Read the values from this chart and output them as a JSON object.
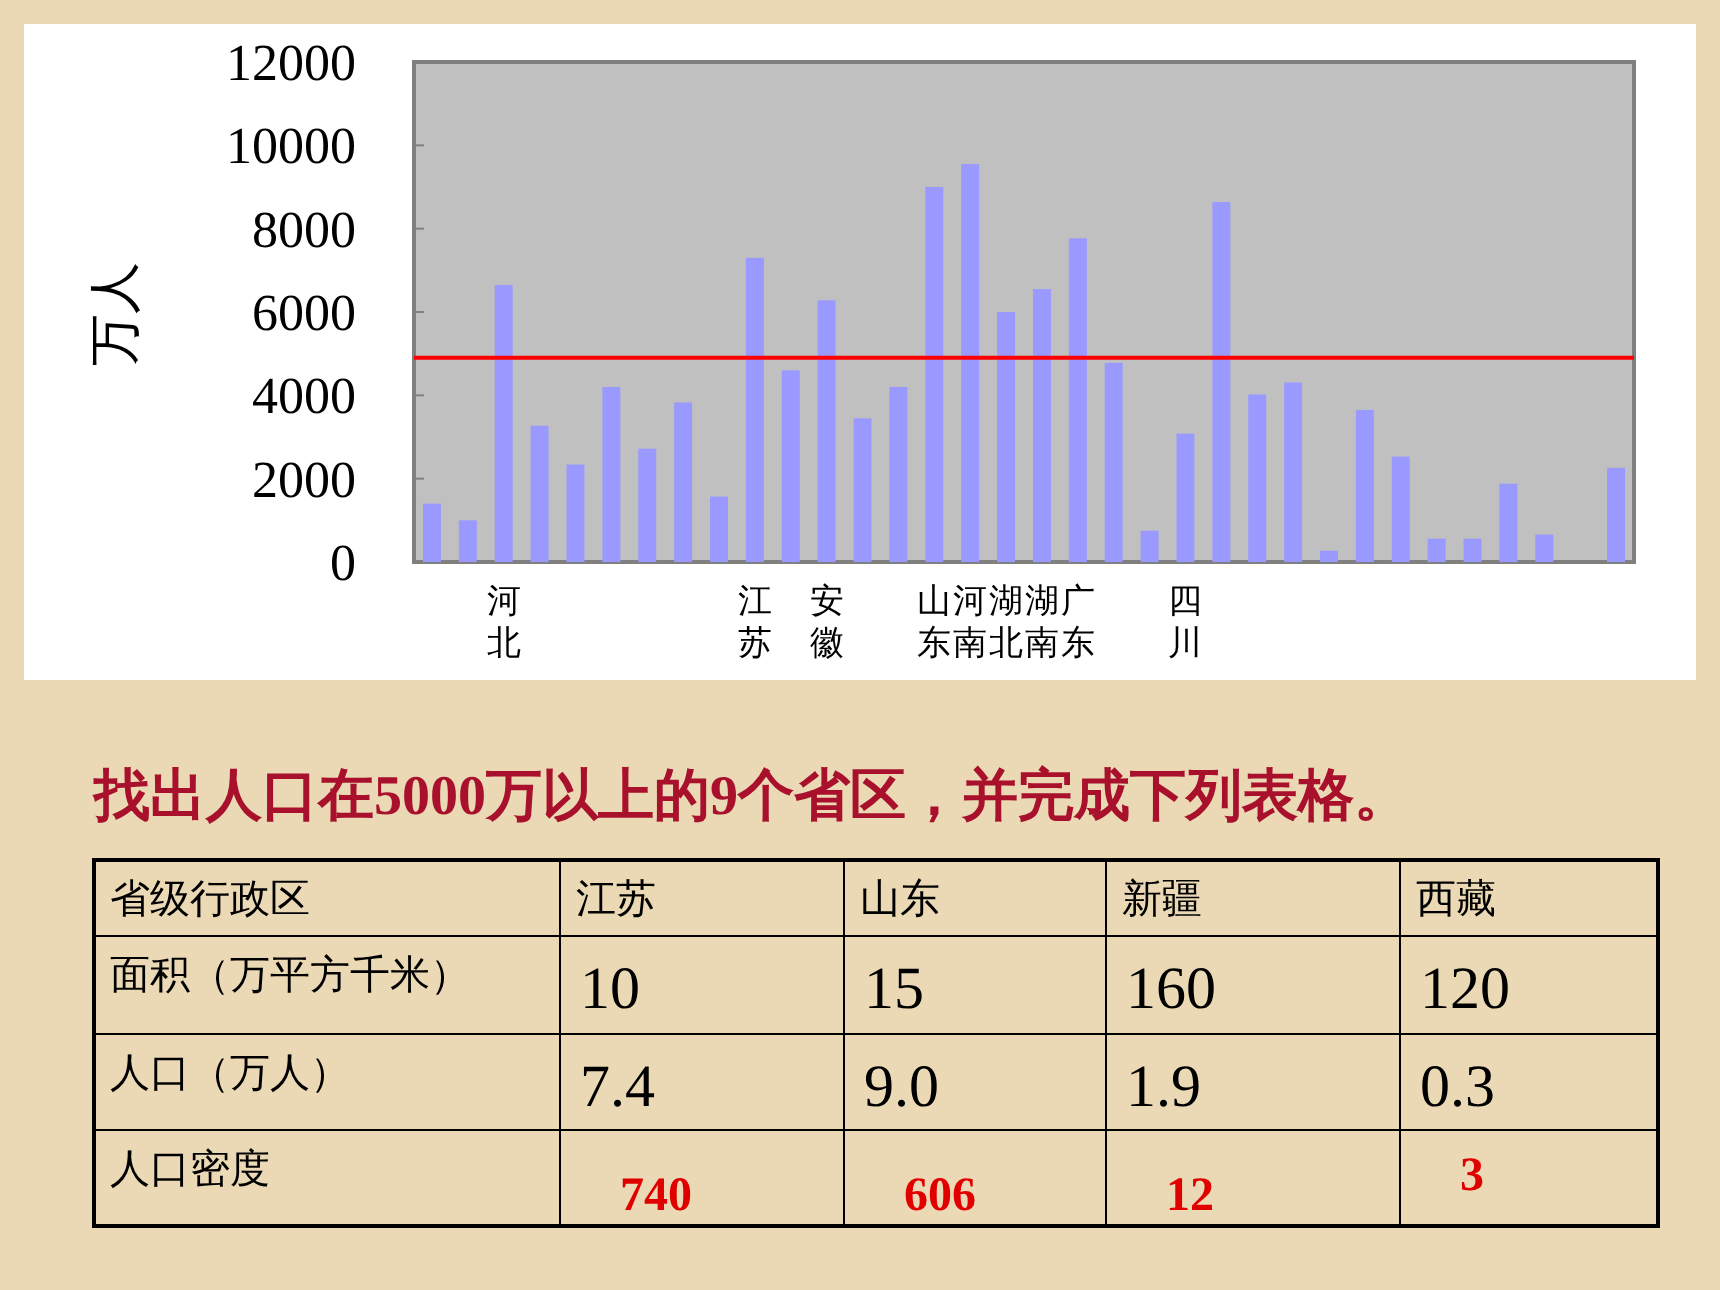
{
  "chart_data": [
    {
      "type": "bar",
      "ylabel": "万人",
      "ylim": [
        0,
        12000
      ],
      "yticks": [
        0,
        2000,
        4000,
        6000,
        8000,
        10000,
        12000
      ],
      "grid": false,
      "color": "#9999ff",
      "categories": [
        null,
        null,
        "河北",
        null,
        null,
        null,
        null,
        null,
        null,
        "江苏",
        null,
        "安徽",
        null,
        null,
        "山东",
        "河南",
        "湖北",
        "湖南",
        "广东",
        null,
        null,
        "四川",
        null,
        null,
        null,
        null,
        null,
        null,
        null,
        null,
        null,
        null,
        null,
        null
      ],
      "values": [
        1400,
        1000,
        6650,
        3270,
        2340,
        4200,
        2720,
        3830,
        1570,
        7300,
        4600,
        6280,
        3450,
        4200,
        9000,
        9550,
        6000,
        6550,
        7770,
        4780,
        750,
        3080,
        8640,
        4020,
        4310,
        270,
        3650,
        2530,
        560,
        560,
        1880,
        660,
        null,
        2260
      ],
      "ref_lines": [
        {
          "axis": "y",
          "value": 4900,
          "color": "#ff0000"
        }
      ]
    },
    {
      "type": "other",
      "title": "找出人口在5000万以上的9个省区，并完成下列表格。",
      "ylabel": "省级行政区",
      "categories": [
        "江苏",
        "山东",
        "新疆",
        "西藏"
      ],
      "y_categories": [
        "面积（万平方千米）",
        "人口（万人）",
        "人口密度"
      ],
      "cell_labels": [
        [
          "10",
          "15",
          "160",
          "120"
        ],
        [
          "7.4",
          "9.0",
          "1.9",
          "0.3"
        ],
        [
          "740",
          "606",
          "12",
          "3"
        ]
      ],
      "colors": [
        "#000000",
        "#000000",
        "#e00000"
      ]
    }
  ]
}
